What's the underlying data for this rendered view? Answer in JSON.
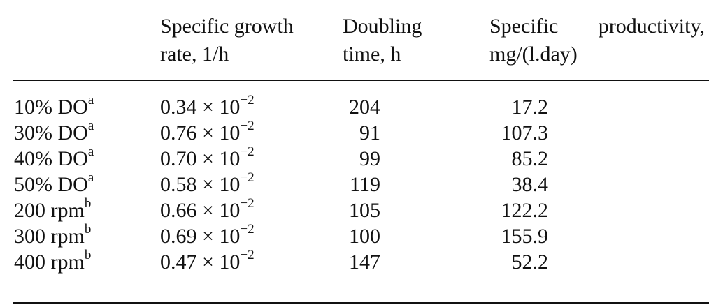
{
  "table": {
    "headers": {
      "growth_rate_line1": "Specific growth",
      "growth_rate_line2": "rate, 1/h",
      "doubling_line1": "Doubling",
      "doubling_line2": "time, h",
      "productivity_word1": "Specific",
      "productivity_word2": "productivity,",
      "productivity_line2": "mg/(l.day)"
    },
    "rows": [
      {
        "condition": "10% DO",
        "sup": "a",
        "rate_base": "0.34 × 10",
        "rate_exp": "−2",
        "doubling": "204",
        "productivity": "17.2"
      },
      {
        "condition": "30% DO",
        "sup": "a",
        "rate_base": "0.76 × 10",
        "rate_exp": "−2",
        "doubling": "91",
        "productivity": "107.3"
      },
      {
        "condition": "40% DO",
        "sup": "a",
        "rate_base": "0.70 × 10",
        "rate_exp": "−2",
        "doubling": "99",
        "productivity": "85.2"
      },
      {
        "condition": "50% DO",
        "sup": "a",
        "rate_base": "0.58 × 10",
        "rate_exp": "−2",
        "doubling": "119",
        "productivity": "38.4"
      },
      {
        "condition": "200 rpm",
        "sup": "b",
        "rate_base": "0.66 × 10",
        "rate_exp": "−2",
        "doubling": "105",
        "productivity": "122.2"
      },
      {
        "condition": "300 rpm",
        "sup": "b",
        "rate_base": "0.69 × 10",
        "rate_exp": "−2",
        "doubling": "100",
        "productivity": "155.9"
      },
      {
        "condition": "400 rpm",
        "sup": "b",
        "rate_base": "0.47 × 10",
        "rate_exp": "−2",
        "doubling": "147",
        "productivity": "52.2"
      }
    ]
  }
}
